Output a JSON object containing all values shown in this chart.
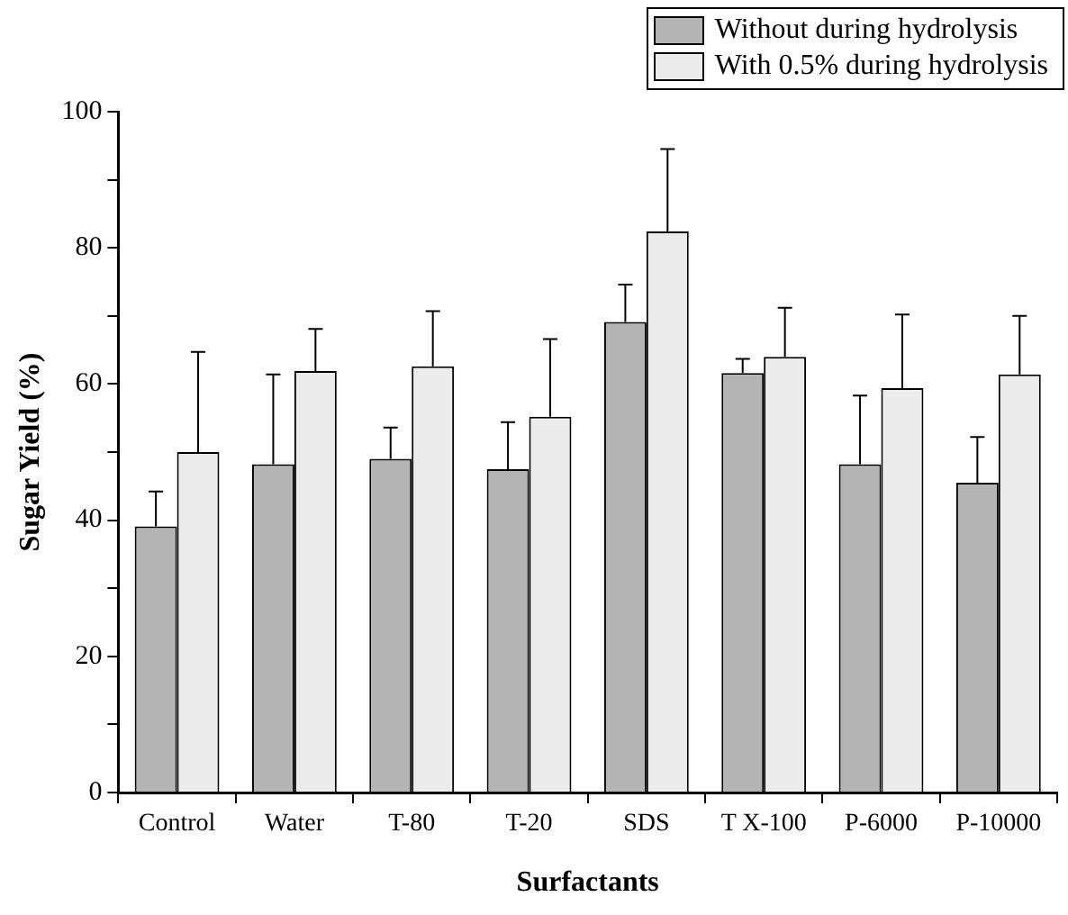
{
  "chart_data": {
    "type": "bar",
    "xlabel": "Surfactants",
    "ylabel": "Sugar Yield (%)",
    "categories": [
      "Control",
      "Water",
      "T-80",
      "T-20",
      "SDS",
      "T X-100",
      "P-6000",
      "P-10000"
    ],
    "series": [
      {
        "name": "Without during hydrolysis",
        "color": "#b4b4b4",
        "values": [
          39.1,
          48.2,
          49.0,
          47.5,
          69.1,
          61.6,
          48.2,
          45.5
        ],
        "errors": [
          [
            39.1,
            44.2
          ],
          [
            48.2,
            61.4
          ],
          [
            49.0,
            53.6
          ],
          [
            47.5,
            54.4
          ],
          [
            69.1,
            74.6
          ],
          [
            61.6,
            63.7
          ],
          [
            48.2,
            58.3
          ],
          [
            45.5,
            52.2
          ]
        ]
      },
      {
        "name": "With 0.5% during hydrolysis",
        "color": "#ececec",
        "values": [
          50.0,
          61.9,
          62.6,
          55.2,
          82.4,
          64.0,
          59.4,
          61.4
        ],
        "errors": [
          [
            50.0,
            64.7
          ],
          [
            61.9,
            68.1
          ],
          [
            62.6,
            70.7
          ],
          [
            55.2,
            66.6
          ],
          [
            82.4,
            94.5
          ],
          [
            64.0,
            71.2
          ],
          [
            59.4,
            70.2
          ],
          [
            61.4,
            70.0
          ]
        ]
      }
    ],
    "ylim": [
      0,
      100
    ],
    "yticks": [
      0,
      {
        "value": 10,
        "label": null
      },
      20,
      {
        "value": 30,
        "label": null
      },
      40,
      {
        "value": 50,
        "label": null
      },
      60,
      {
        "value": 70,
        "label": null
      },
      80,
      {
        "value": 90,
        "label": null
      },
      100
    ],
    "grid": false,
    "legend": "top right"
  }
}
